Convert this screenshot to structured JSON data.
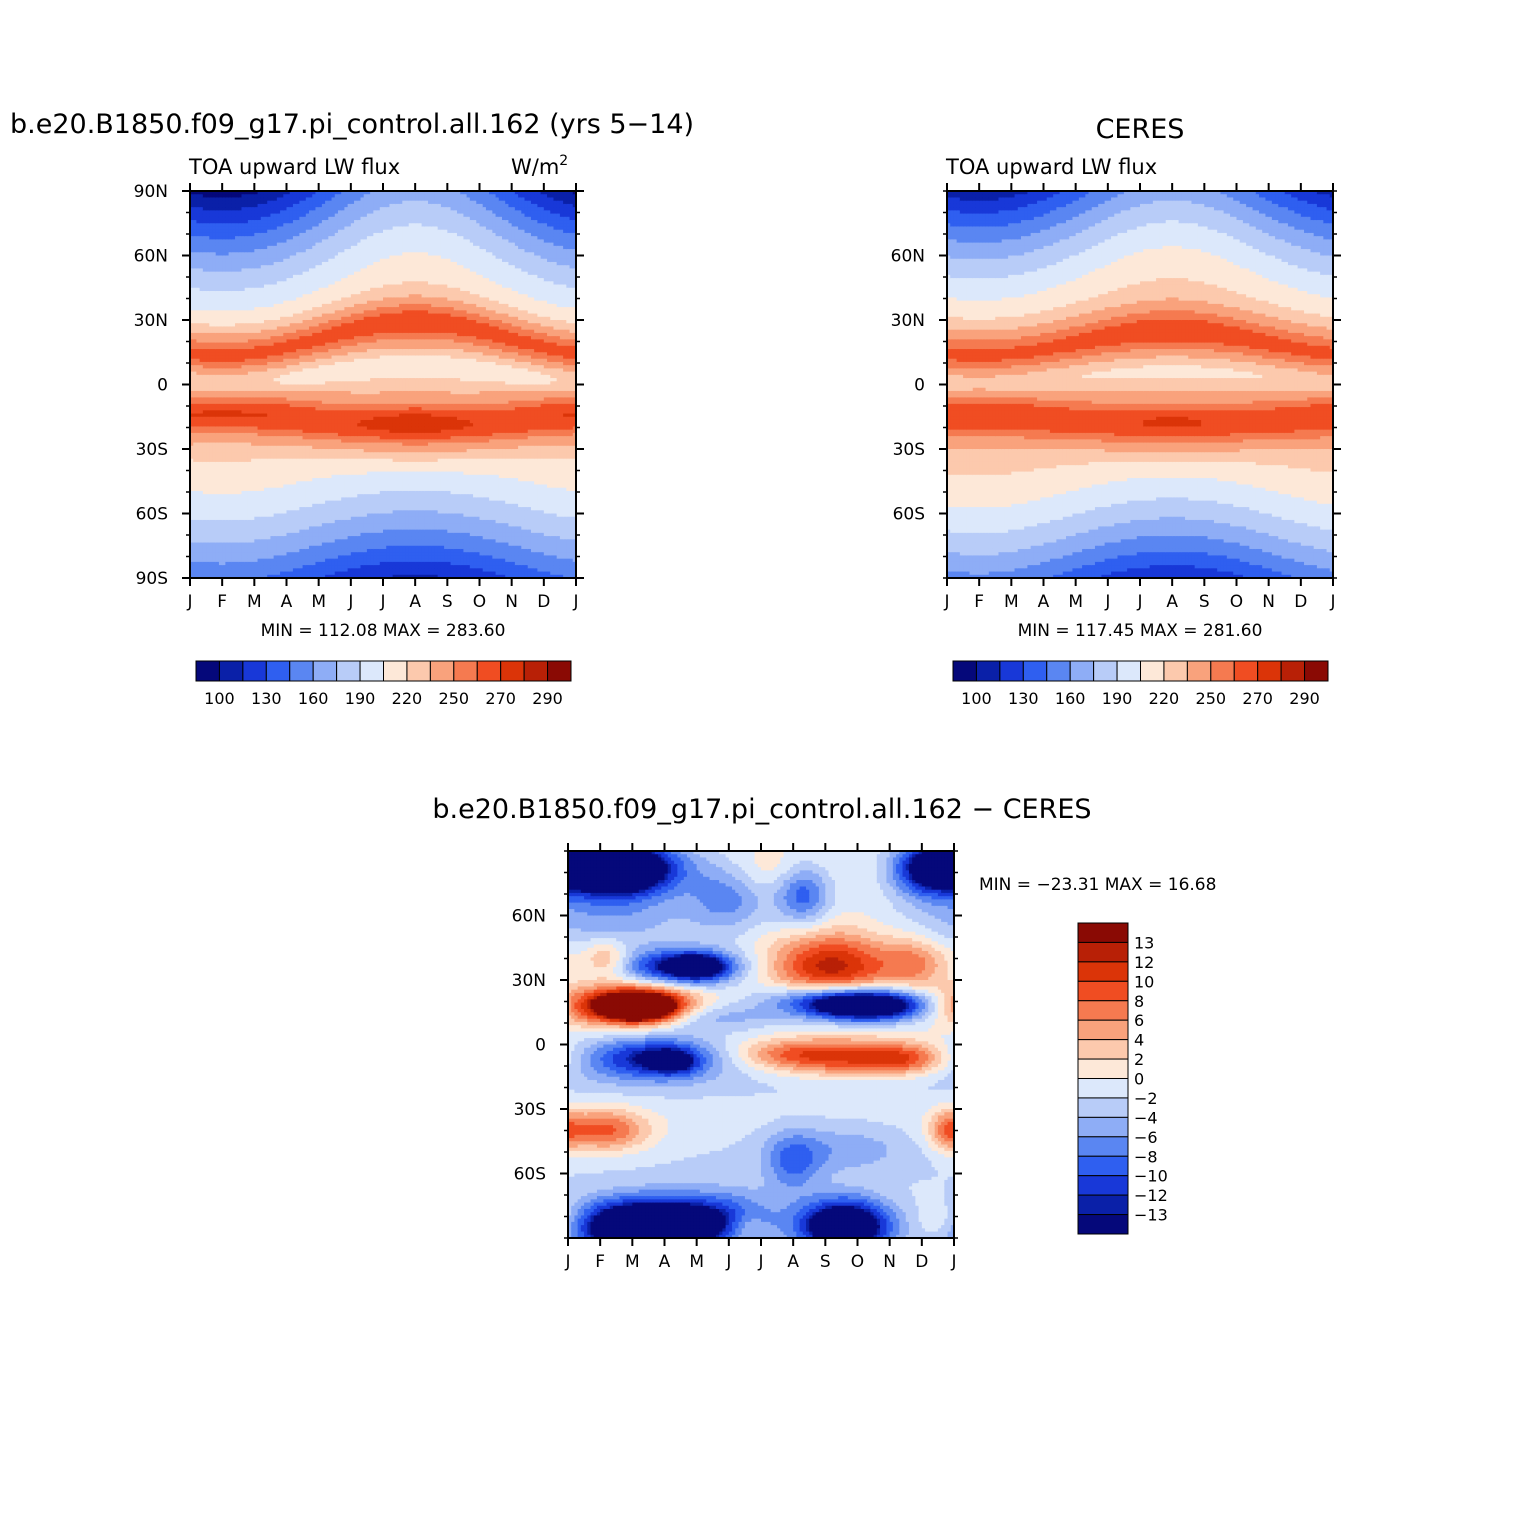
{
  "palette": {
    "levels": [
      "#05087a",
      "#0a20a8",
      "#1838d8",
      "#2f5ff0",
      "#5a86f2",
      "#8eadf6",
      "#b8ccf8",
      "#dce8fb",
      "#fde8d8",
      "#fcc9ad",
      "#f9a27c",
      "#f57a50",
      "#f04d22",
      "#db3408",
      "#b82006",
      "#8a0a04"
    ]
  },
  "months": [
    "J",
    "F",
    "M",
    "A",
    "M",
    "J",
    "J",
    "A",
    "S",
    "O",
    "N",
    "D",
    "J"
  ],
  "chart_data": [
    {
      "type": "heatmap",
      "id": "model",
      "title": "b.e20.B1850.f09_g17.pi_control.all.162 (yrs 5−14)",
      "subtitle_left": "TOA upward LW flux",
      "units": "W/m",
      "units_exp": "2",
      "y_tick_labels": [
        "90N",
        "60N",
        "30N",
        "0",
        "30S",
        "60S",
        "90S"
      ],
      "ylim": [
        -90,
        90
      ],
      "stats": "MIN = 112.08 MAX = 283.60",
      "colorbar_labels": [
        "100",
        "130",
        "160",
        "190",
        "220",
        "250",
        "270",
        "290"
      ]
    },
    {
      "type": "heatmap",
      "id": "obs",
      "title": "CERES",
      "subtitle_left": "TOA upward LW flux",
      "y_tick_labels": [
        "60N",
        "30N",
        "0",
        "30S",
        "60S"
      ],
      "ylim": [
        -90,
        90
      ],
      "stats": "MIN = 117.45 MAX = 281.60",
      "colorbar_labels": [
        "100",
        "130",
        "160",
        "190",
        "220",
        "250",
        "270",
        "290"
      ]
    },
    {
      "type": "heatmap",
      "id": "diff",
      "title": "b.e20.B1850.f09_g17.pi_control.all.162 − CERES",
      "y_tick_labels": [
        "60N",
        "30N",
        "0",
        "30S",
        "60S"
      ],
      "ylim": [
        -90,
        90
      ],
      "stats": "MIN = −23.31 MAX =  16.68",
      "colorbar_labels": [
        "13",
        "12",
        "10",
        "8",
        "6",
        "4",
        "2",
        "0",
        "−2",
        "−4",
        "−6",
        "−8",
        "−10",
        "−12",
        "−13"
      ]
    }
  ]
}
